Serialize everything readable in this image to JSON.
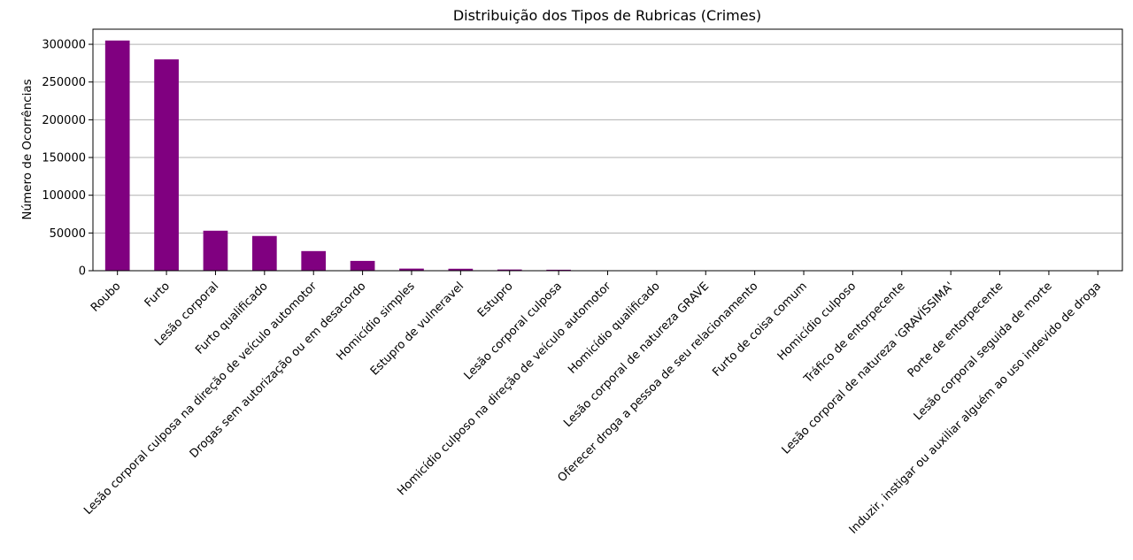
{
  "chart_data": {
    "type": "bar",
    "title": "Distribuição dos Tipos de Rubricas (Crimes)",
    "xlabel": "",
    "ylabel": "Número de Ocorrências",
    "ylim": [
      0,
      320000
    ],
    "yticks": [
      0,
      50000,
      100000,
      150000,
      200000,
      250000,
      300000
    ],
    "ytick_labels": [
      "0",
      "50000",
      "100000",
      "150000",
      "200000",
      "250000",
      "300000"
    ],
    "grid": "horizontal",
    "bar_color": "#800080",
    "categories": [
      "Roubo",
      "Furto",
      "Lesão corporal",
      "Furto qualificado",
      "Lesão corporal culposa na direção de veículo automotor",
      "Drogas sem autorização ou em desacordo",
      "Homicídio simples",
      "Estupro de vulneravel",
      "Estupro",
      "Lesão corporal culposa",
      "Homicídio culposo na direção de veículo automotor",
      "Homicídio qualificado",
      "Lesão corporal de natureza GRAVE",
      "Oferecer droga a pessoa de seu relacionamento",
      "Furto de coisa comum",
      "Homicídio culposo",
      "Tráfico de entorpecente",
      "Lesão corporal  de natureza 'GRAVÍSSIMA'",
      "Porte de entorpecente",
      "Lesão corporal seguida de morte",
      "Induzir, instigar ou auxiliar alguém ao uso indevido de droga"
    ],
    "values": [
      305000,
      280000,
      53000,
      46000,
      26000,
      13000,
      2800,
      2600,
      1600,
      1300,
      400,
      250,
      200,
      120,
      100,
      80,
      60,
      40,
      30,
      20,
      10
    ]
  }
}
